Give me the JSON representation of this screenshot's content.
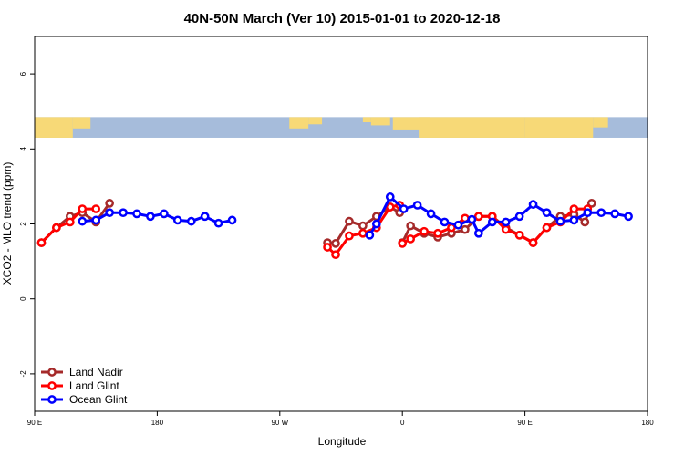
{
  "chart_data": {
    "type": "line",
    "title": "40N-50N March (Ver 10)   2015-01-01 to 2020-12-18",
    "xlabel": "Longitude",
    "ylabel": "XCO2 - MLO trend (ppm)",
    "xlim": [
      90,
      540
    ],
    "ylim": [
      -3,
      7
    ],
    "xticks": [
      {
        "value": 90,
        "label": "90 E"
      },
      {
        "value": 180,
        "label": "180"
      },
      {
        "value": 270,
        "label": "90 W"
      },
      {
        "value": 360,
        "label": "0"
      },
      {
        "value": 450,
        "label": "90 E"
      },
      {
        "value": 540,
        "label": "180"
      }
    ],
    "yticks": [
      {
        "value": -2,
        "label": "-2"
      },
      {
        "value": 0,
        "label": "0"
      },
      {
        "value": 2,
        "label": "2"
      },
      {
        "value": 4,
        "label": "4"
      },
      {
        "value": 6,
        "label": "6"
      }
    ],
    "map_strip": {
      "y_range": [
        4.3,
        4.85
      ],
      "colors": {
        "land": "#f7d977",
        "ocean": "#a6bcdb"
      }
    },
    "legend_position": "bottom-left",
    "series": [
      {
        "name": "Land Nadir",
        "color": "#a52a2a",
        "segments": [
          [
            [
              95,
              1.5
            ],
            [
              106,
              1.9
            ],
            [
              116,
              2.2
            ],
            [
              125,
              2.3
            ],
            [
              135,
              2.05
            ],
            [
              145,
              2.55
            ]
          ],
          [
            [
              305,
              1.5
            ],
            [
              311,
              1.48
            ],
            [
              321,
              2.07
            ],
            [
              331,
              1.95
            ],
            [
              341,
              2.2
            ],
            [
              351,
              2.45
            ],
            [
              358,
              2.3
            ]
          ],
          [
            [
              360,
              1.5
            ],
            [
              366,
              1.95
            ],
            [
              376,
              1.75
            ],
            [
              386,
              1.65
            ],
            [
              396,
              1.75
            ],
            [
              406,
              1.85
            ],
            [
              416,
              2.2
            ],
            [
              426,
              2.2
            ],
            [
              436,
              1.9
            ],
            [
              446,
              1.7
            ],
            [
              456,
              1.5
            ],
            [
              466,
              1.9
            ],
            [
              476,
              2.2
            ],
            [
              486,
              2.25
            ],
            [
              494,
              2.05
            ],
            [
              499,
              2.55
            ]
          ]
        ]
      },
      {
        "name": "Land Glint",
        "color": "#ff0000",
        "segments": [
          [
            [
              95,
              1.5
            ],
            [
              106,
              1.9
            ],
            [
              116,
              2.05
            ],
            [
              125,
              2.4
            ],
            [
              135,
              2.4
            ]
          ],
          [
            [
              305,
              1.38
            ],
            [
              311,
              1.18
            ],
            [
              321,
              1.68
            ],
            [
              331,
              1.75
            ],
            [
              341,
              1.9
            ],
            [
              351,
              2.45
            ],
            [
              358,
              2.5
            ]
          ],
          [
            [
              360,
              1.48
            ],
            [
              366,
              1.6
            ],
            [
              376,
              1.8
            ],
            [
              386,
              1.75
            ],
            [
              396,
              1.9
            ],
            [
              406,
              2.15
            ],
            [
              416,
              2.2
            ],
            [
              426,
              2.2
            ],
            [
              436,
              1.85
            ],
            [
              446,
              1.7
            ],
            [
              456,
              1.5
            ],
            [
              466,
              1.9
            ],
            [
              476,
              2.05
            ],
            [
              486,
              2.4
            ],
            [
              496,
              2.4
            ]
          ]
        ]
      },
      {
        "name": "Ocean Glint",
        "color": "#0000ff",
        "segments": [
          [
            [
              125,
              2.07
            ],
            [
              135,
              2.1
            ],
            [
              145,
              2.3
            ],
            [
              155,
              2.3
            ],
            [
              165,
              2.27
            ],
            [
              175,
              2.2
            ],
            [
              185,
              2.27
            ],
            [
              195,
              2.1
            ],
            [
              205,
              2.07
            ],
            [
              215,
              2.2
            ],
            [
              225,
              2.02
            ],
            [
              235,
              2.1
            ]
          ],
          [
            [
              336,
              1.7
            ],
            [
              341,
              2.0
            ],
            [
              351,
              2.72
            ],
            [
              361,
              2.4
            ],
            [
              371,
              2.5
            ],
            [
              381,
              2.27
            ],
            [
              391,
              2.05
            ],
            [
              401,
              1.97
            ],
            [
              411,
              2.12
            ],
            [
              416,
              1.75
            ],
            [
              426,
              2.05
            ],
            [
              436,
              2.05
            ],
            [
              446,
              2.2
            ],
            [
              456,
              2.52
            ],
            [
              466,
              2.3
            ],
            [
              476,
              2.07
            ],
            [
              486,
              2.1
            ],
            [
              496,
              2.3
            ],
            [
              506,
              2.3
            ],
            [
              516,
              2.27
            ],
            [
              526,
              2.2
            ]
          ]
        ]
      }
    ]
  }
}
